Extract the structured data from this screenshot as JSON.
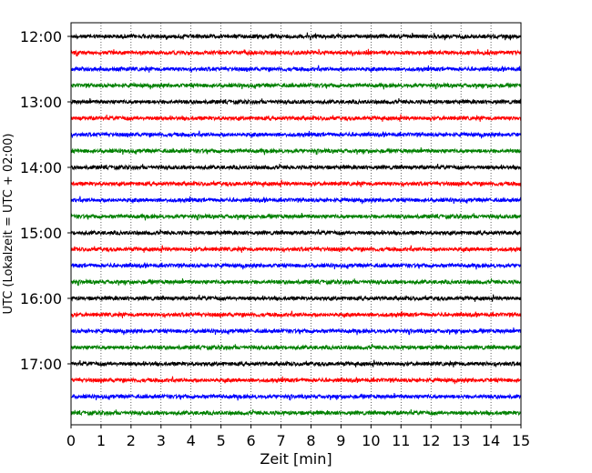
{
  "chart_data": {
    "type": "line",
    "title": "",
    "xlabel": "Zeit  [min]",
    "ylabel": "UTC (Lokalzeit = UTC + 02:00)",
    "xlim": [
      0,
      15
    ],
    "x_ticks": [
      0,
      1,
      2,
      3,
      4,
      5,
      6,
      7,
      8,
      9,
      10,
      11,
      12,
      13,
      14,
      15
    ],
    "x_tick_labels": [
      "0",
      "1",
      "2",
      "3",
      "4",
      "5",
      "6",
      "7",
      "8",
      "9",
      "10",
      "11",
      "12",
      "13",
      "14",
      "15"
    ],
    "y_tick_labels": [
      "12:00",
      "13:00",
      "14:00",
      "15:00",
      "16:00",
      "17:00"
    ],
    "grid": "vertical dotted",
    "trace_interval_minutes": 15,
    "color_cycle": [
      "#000000",
      "#ff0000",
      "#0000ff",
      "#008000"
    ],
    "traces": [
      {
        "start": "12:00",
        "color": "#000000"
      },
      {
        "start": "12:15",
        "color": "#ff0000"
      },
      {
        "start": "12:30",
        "color": "#0000ff"
      },
      {
        "start": "12:45",
        "color": "#008000"
      },
      {
        "start": "13:00",
        "color": "#000000"
      },
      {
        "start": "13:15",
        "color": "#ff0000"
      },
      {
        "start": "13:30",
        "color": "#0000ff"
      },
      {
        "start": "13:45",
        "color": "#008000"
      },
      {
        "start": "14:00",
        "color": "#000000"
      },
      {
        "start": "14:15",
        "color": "#ff0000"
      },
      {
        "start": "14:30",
        "color": "#0000ff"
      },
      {
        "start": "14:45",
        "color": "#008000"
      },
      {
        "start": "15:00",
        "color": "#000000"
      },
      {
        "start": "15:15",
        "color": "#ff0000"
      },
      {
        "start": "15:30",
        "color": "#0000ff"
      },
      {
        "start": "15:45",
        "color": "#008000"
      },
      {
        "start": "16:00",
        "color": "#000000"
      },
      {
        "start": "16:15",
        "color": "#ff0000"
      },
      {
        "start": "16:30",
        "color": "#0000ff"
      },
      {
        "start": "16:45",
        "color": "#008000"
      },
      {
        "start": "17:00",
        "color": "#000000"
      },
      {
        "start": "17:15",
        "color": "#ff0000"
      },
      {
        "start": "17:30",
        "color": "#0000ff"
      },
      {
        "start": "17:45",
        "color": "#008000"
      }
    ]
  }
}
